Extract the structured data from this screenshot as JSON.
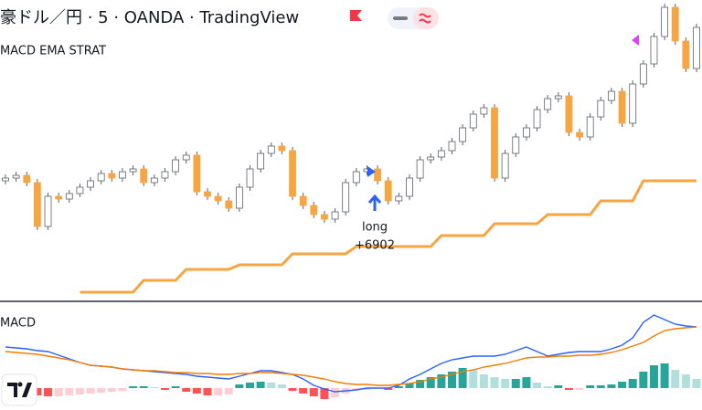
{
  "header": {
    "symbol_line": "豪ドル／円 · 5 · OANDA · TradingView"
  },
  "chart_data": [
    {
      "type": "candlestick",
      "title": "MACD EMA STRAT",
      "open": [
        132,
        135,
        138,
        130,
        82,
        115,
        112,
        118,
        125,
        132,
        140,
        135,
        142,
        145,
        130,
        135,
        142,
        155,
        160,
        120,
        115,
        110,
        102,
        125,
        145,
        162,
        170,
        165,
        115,
        105,
        95,
        90,
        98,
        130,
        142,
        145,
        132,
        110,
        115,
        135,
        155,
        158,
        165,
        175,
        190,
        205,
        212,
        135,
        162,
        180,
        190,
        210,
        222,
        225,
        185,
        180,
        202,
        220,
        230,
        195,
        238,
        260,
        290,
        322,
        285,
        255
      ],
      "high": [
        139,
        142,
        142,
        134,
        119,
        119,
        122,
        129,
        136,
        144,
        144,
        146,
        149,
        149,
        139,
        146,
        159,
        164,
        164,
        124,
        119,
        114,
        129,
        149,
        166,
        174,
        174,
        169,
        119,
        109,
        99,
        102,
        134,
        146,
        149,
        149,
        136,
        119,
        139,
        159,
        162,
        169,
        179,
        194,
        209,
        216,
        216,
        166,
        184,
        194,
        214,
        226,
        229,
        229,
        189,
        206,
        224,
        234,
        234,
        242,
        264,
        294,
        326,
        326,
        289,
        304
      ],
      "low": [
        128,
        131,
        126,
        78,
        78,
        108,
        108,
        114,
        121,
        128,
        131,
        131,
        138,
        126,
        126,
        131,
        138,
        151,
        116,
        111,
        106,
        98,
        98,
        121,
        141,
        158,
        161,
        111,
        101,
        91,
        86,
        86,
        94,
        126,
        138,
        128,
        106,
        106,
        111,
        131,
        151,
        154,
        161,
        171,
        186,
        201,
        131,
        131,
        158,
        176,
        186,
        206,
        218,
        181,
        176,
        176,
        198,
        216,
        191,
        191,
        234,
        256,
        286,
        281,
        251,
        251
      ],
      "close": [
        135,
        138,
        130,
        82,
        115,
        112,
        118,
        125,
        132,
        140,
        135,
        142,
        145,
        130,
        135,
        142,
        155,
        160,
        120,
        115,
        110,
        102,
        125,
        145,
        162,
        170,
        165,
        115,
        105,
        95,
        90,
        98,
        130,
        142,
        145,
        132,
        110,
        115,
        135,
        155,
        158,
        165,
        175,
        190,
        205,
        212,
        135,
        162,
        180,
        190,
        210,
        222,
        225,
        185,
        180,
        202,
        220,
        230,
        195,
        238,
        260,
        290,
        322,
        285,
        255,
        300
      ],
      "up_color": "#ffffff",
      "down_color": "#f7a541",
      "wick_color": "#5d606b",
      "series": [
        {
          "color": "#f7a541",
          "values": [
            null,
            null,
            null,
            null,
            null,
            null,
            null,
            10,
            10,
            10,
            10,
            10,
            10,
            23,
            23,
            23,
            23,
            35,
            35,
            35,
            35,
            35,
            40,
            40,
            40,
            40,
            40,
            52,
            52,
            52,
            52,
            52,
            52,
            60,
            60,
            60,
            60,
            60,
            60,
            60,
            60,
            72,
            72,
            72,
            72,
            72,
            85,
            85,
            85,
            85,
            85,
            95,
            95,
            95,
            95,
            95,
            110,
            110,
            110,
            110,
            132,
            132,
            132,
            132,
            132,
            132
          ]
        }
      ],
      "annotations": [
        "long",
        "+6902"
      ],
      "ylim": [
        0,
        330
      ]
    },
    {
      "type": "macd",
      "title": "MACD",
      "series": [
        {
          "color": "#2962ff",
          "values": [
            45,
            44,
            43,
            41,
            40,
            36,
            32,
            28,
            25,
            24,
            23,
            21,
            20,
            19,
            18,
            17,
            16,
            15,
            13,
            12,
            11,
            10,
            13,
            16,
            19,
            19,
            17,
            15,
            10,
            3,
            -1,
            -4,
            -3,
            -2,
            0,
            0,
            0,
            3,
            10,
            15,
            21,
            27,
            31,
            33,
            35,
            35,
            35,
            37,
            41,
            45,
            40,
            35,
            37,
            39,
            40,
            40,
            40,
            43,
            47,
            55,
            72,
            80,
            75,
            70,
            68,
            67
          ]
        },
        {
          "color": "#f57c00",
          "values": [
            40,
            39,
            38,
            37,
            35,
            33,
            31,
            28,
            25,
            24,
            23,
            21,
            20,
            19,
            19,
            18,
            17,
            17,
            16,
            16,
            15,
            15,
            16,
            16,
            17,
            17,
            16,
            15,
            14,
            12,
            10,
            7,
            5,
            4,
            4,
            3,
            3,
            4,
            5,
            7,
            10,
            12,
            15,
            18,
            20,
            23,
            25,
            27,
            30,
            33,
            34,
            34,
            35,
            35,
            36,
            36,
            37,
            39,
            42,
            46,
            50,
            57,
            63,
            65,
            66,
            67
          ]
        }
      ],
      "histogram": [
        -3,
        -4,
        -6,
        -8,
        -9,
        -9,
        -8,
        -7,
        -6,
        -5,
        -4,
        -3,
        2,
        2,
        1,
        -2,
        2,
        -4,
        -6,
        -8,
        -8,
        -7,
        4,
        6,
        7,
        6,
        4,
        -3,
        -6,
        -9,
        -12,
        -10,
        -6,
        -2,
        -2,
        -1,
        -2,
        2,
        5,
        9,
        12,
        15,
        18,
        22,
        20,
        15,
        12,
        10,
        10,
        12,
        6,
        2,
        3,
        -2,
        -2,
        3,
        3,
        4,
        7,
        10,
        18,
        25,
        27,
        20,
        15,
        10
      ],
      "histogram_colors": [
        "#26a69a",
        "#b2dfdb",
        "#ffcdd2",
        "#ff5252"
      ],
      "ylim": [
        -24,
        90
      ]
    }
  ]
}
